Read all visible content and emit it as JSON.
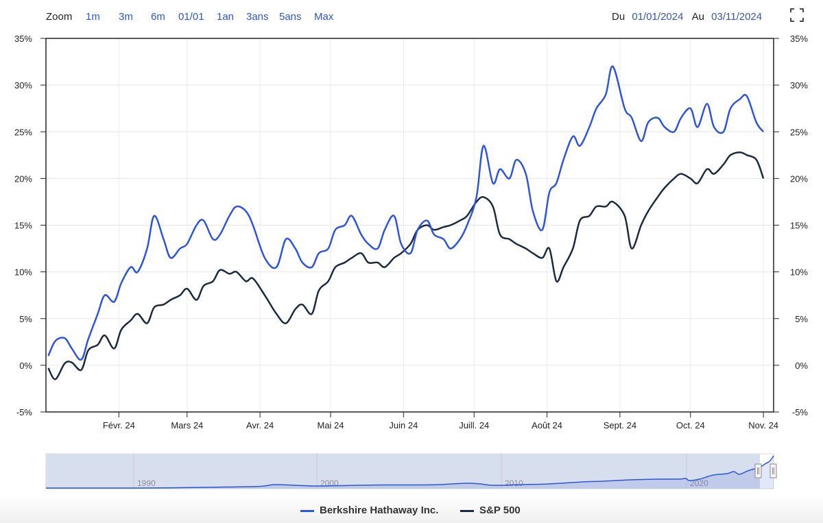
{
  "toolbar": {
    "zoom_label": "Zoom",
    "zoom_buttons": [
      "1m",
      "3m",
      "6m",
      "01/01",
      "1an",
      "3ans",
      "5ans",
      "Max"
    ],
    "from_label": "Du",
    "from_value": "01/01/2024",
    "to_label": "Au",
    "to_value": "03/11/2024",
    "fullscreen_icon": "fullscreen-icon"
  },
  "colors": {
    "berkshire": "#2f55d4",
    "sp500": "#1c2a3e",
    "link": "#2f55d4",
    "navigator_fill": "#d5dcec"
  },
  "legend": {
    "berkshire": "Berkshire Hathaway Inc.",
    "sp500": "S&P 500"
  },
  "navigator": {
    "labels": [
      "1990",
      "2000",
      "2010",
      "2020"
    ]
  },
  "chart_data": {
    "type": "line",
    "title": "",
    "xlabel": "",
    "ylabel": "",
    "ylim": [
      -5,
      35
    ],
    "yticks": [
      "-5%",
      "0%",
      "5%",
      "10%",
      "15%",
      "20%",
      "25%",
      "30%",
      "35%"
    ],
    "xticks": [
      "Févr. 24",
      "Mars 24",
      "Avr. 24",
      "Mai 24",
      "Juin 24",
      "Juill. 24",
      "Août 24",
      "Sept. 24",
      "Oct. 24",
      "Nov. 24"
    ],
    "grid": true,
    "legend_position": "bottom",
    "x_range": [
      "2024-01-01",
      "2024-11-03"
    ],
    "series": [
      {
        "name": "Berkshire Hathaway Inc.",
        "color": "#2f55d4",
        "x": [
          "01-02",
          "01-05",
          "01-09",
          "01-12",
          "01-16",
          "01-19",
          "01-23",
          "01-26",
          "01-30",
          "02-02",
          "02-06",
          "02-09",
          "02-13",
          "02-16",
          "02-20",
          "02-23",
          "02-27",
          "03-01",
          "03-05",
          "03-08",
          "03-12",
          "03-15",
          "03-19",
          "03-22",
          "03-26",
          "03-29",
          "04-03",
          "04-08",
          "04-12",
          "04-16",
          "04-19",
          "04-23",
          "04-26",
          "04-30",
          "05-03",
          "05-07",
          "05-10",
          "05-14",
          "05-17",
          "05-21",
          "05-24",
          "05-28",
          "05-31",
          "06-04",
          "06-07",
          "06-11",
          "06-14",
          "06-18",
          "06-21",
          "06-25",
          "06-28",
          "07-02",
          "07-05",
          "07-09",
          "07-12",
          "07-16",
          "07-19",
          "07-23",
          "07-26",
          "07-30",
          "08-02",
          "08-05",
          "08-08",
          "08-12",
          "08-15",
          "08-19",
          "08-22",
          "08-26",
          "08-29",
          "09-03",
          "09-06",
          "09-10",
          "09-13",
          "09-17",
          "09-20",
          "09-24",
          "09-27",
          "10-01",
          "10-04",
          "10-08",
          "10-11",
          "10-15",
          "10-18",
          "10-22",
          "10-25",
          "10-29",
          "11-01"
        ],
        "values": [
          1.0,
          2.6,
          2.9,
          1.8,
          0.6,
          2.8,
          5.5,
          7.5,
          6.8,
          8.8,
          10.5,
          10.0,
          12.5,
          16.0,
          13.5,
          11.5,
          12.5,
          13.0,
          15.0,
          15.5,
          13.5,
          14.0,
          16.0,
          17.0,
          16.5,
          15.0,
          11.5,
          10.5,
          13.5,
          12.5,
          11.0,
          10.5,
          12.0,
          12.5,
          14.5,
          15.0,
          16.0,
          14.0,
          13.0,
          12.5,
          14.5,
          16.0,
          13.0,
          12.0,
          14.5,
          15.5,
          14.0,
          13.5,
          12.5,
          13.5,
          15.0,
          18.0,
          23.5,
          19.5,
          21.0,
          20.0,
          22.0,
          20.5,
          16.5,
          14.5,
          18.5,
          19.5,
          22.0,
          24.5,
          23.5,
          25.5,
          27.5,
          29.0,
          32.0,
          27.5,
          26.5,
          24.0,
          26.0,
          26.5,
          25.5,
          25.0,
          26.5,
          27.5,
          25.5,
          28.0,
          25.5,
          25.0,
          27.5,
          28.5,
          28.8,
          26.0,
          25.0
        ]
      },
      {
        "name": "S&P 500",
        "color": "#1c2a3e",
        "x": [
          "01-02",
          "01-05",
          "01-09",
          "01-12",
          "01-16",
          "01-19",
          "01-23",
          "01-26",
          "01-30",
          "02-02",
          "02-06",
          "02-09",
          "02-13",
          "02-16",
          "02-20",
          "02-23",
          "02-27",
          "03-01",
          "03-05",
          "03-08",
          "03-12",
          "03-15",
          "03-19",
          "03-22",
          "03-26",
          "03-29",
          "04-03",
          "04-08",
          "04-12",
          "04-16",
          "04-19",
          "04-23",
          "04-26",
          "04-30",
          "05-03",
          "05-07",
          "05-10",
          "05-14",
          "05-17",
          "05-21",
          "05-24",
          "05-28",
          "05-31",
          "06-04",
          "06-07",
          "06-11",
          "06-14",
          "06-18",
          "06-21",
          "06-25",
          "06-28",
          "07-02",
          "07-05",
          "07-09",
          "07-12",
          "07-16",
          "07-19",
          "07-23",
          "07-26",
          "07-30",
          "08-02",
          "08-05",
          "08-08",
          "08-12",
          "08-15",
          "08-19",
          "08-22",
          "08-26",
          "08-29",
          "09-03",
          "09-06",
          "09-10",
          "09-13",
          "09-17",
          "09-20",
          "09-24",
          "09-27",
          "10-01",
          "10-04",
          "10-08",
          "10-11",
          "10-15",
          "10-18",
          "10-22",
          "10-25",
          "10-29",
          "11-01"
        ],
        "values": [
          -0.3,
          -1.5,
          0.2,
          0.3,
          -0.5,
          1.6,
          2.2,
          3.2,
          1.8,
          3.8,
          4.8,
          5.5,
          4.5,
          6.2,
          6.5,
          7.0,
          7.5,
          8.2,
          7.0,
          8.5,
          9.0,
          10.2,
          9.8,
          10.0,
          9.0,
          9.3,
          7.5,
          5.5,
          4.5,
          6.0,
          6.5,
          5.5,
          8.0,
          9.0,
          10.5,
          11.0,
          11.5,
          12.0,
          11.0,
          11.0,
          10.5,
          11.5,
          12.0,
          13.0,
          14.5,
          15.0,
          14.5,
          14.8,
          15.0,
          15.5,
          16.0,
          17.5,
          18.0,
          17.0,
          14.0,
          13.5,
          13.0,
          12.5,
          12.0,
          11.5,
          12.5,
          9.0,
          10.5,
          12.5,
          15.5,
          16.0,
          17.0,
          17.0,
          17.5,
          16.0,
          12.5,
          15.0,
          16.5,
          18.0,
          19.0,
          20.0,
          20.5,
          20.0,
          19.5,
          21.0,
          20.5,
          21.5,
          22.5,
          22.8,
          22.5,
          22.0,
          20.0
        ]
      }
    ]
  }
}
